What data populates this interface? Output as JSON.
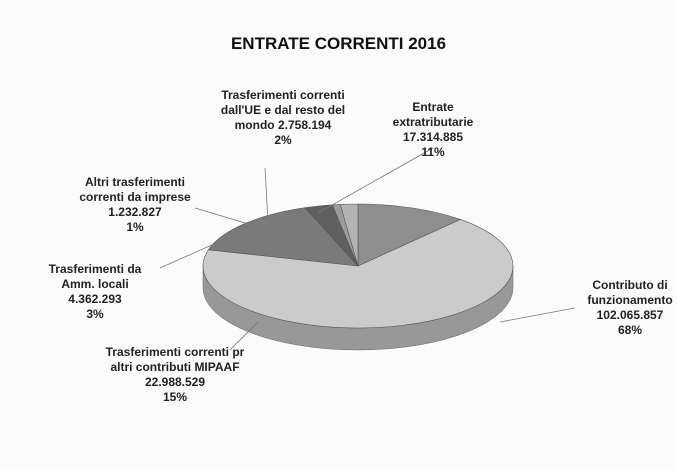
{
  "chart_data": {
    "type": "pie3d",
    "title": "ENTRATE CORRENTI 2016",
    "categories": [
      "Entrate extratributarie",
      "Contributo di funzionamento",
      "Trasferimenti correnti pr altri contributi MIPAAF",
      "Trasferimenti da Amm. locali",
      "Altri trasferimenti correnti da imprese",
      "Trasferimenti correnti dall'UE e dal resto del mondo"
    ],
    "values": [
      17314885,
      102065857,
      22988529,
      4362293,
      1232827,
      2758194
    ],
    "value_labels": [
      "17.314.885",
      "102.065.857",
      "22.988.529",
      "4.362.293",
      "1.232.827",
      "2.758.194"
    ],
    "percent_labels": [
      "11%",
      "68%",
      "15%",
      "3%",
      "1%",
      "2%"
    ],
    "colors": [
      "#8e8e8e",
      "#cbcbcb",
      "#7a7a7a",
      "#5f5f5f",
      "#9c9c9c",
      "#b3b3b3"
    ]
  }
}
